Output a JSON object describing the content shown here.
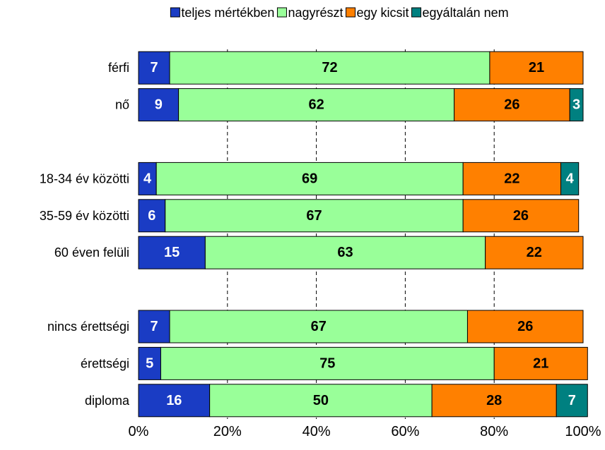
{
  "chart_data": {
    "type": "stacked-bar",
    "orientation": "horizontal",
    "categories": [
      "férfi",
      "nő",
      null,
      "18-34 év közötti",
      "35-59 év közötti",
      "60 éven felüli",
      null,
      "nincs érettségi",
      "érettségi",
      "diploma"
    ],
    "series": [
      {
        "name": "teljes mértékben",
        "color": "#1a3cc4",
        "values": [
          7,
          9,
          null,
          4,
          6,
          15,
          null,
          7,
          5,
          16
        ]
      },
      {
        "name": "nagyrészt",
        "color": "#99ff99",
        "values": [
          72,
          62,
          null,
          69,
          67,
          63,
          null,
          67,
          75,
          50
        ]
      },
      {
        "name": "egy kicsit",
        "color": "#ff8000",
        "values": [
          21,
          26,
          null,
          22,
          26,
          22,
          null,
          26,
          21,
          28
        ]
      },
      {
        "name": "egyáltalán nem",
        "color": "#008080",
        "values": [
          null,
          3,
          null,
          4,
          null,
          null,
          null,
          null,
          null,
          7
        ]
      }
    ],
    "xlim": [
      0,
      100
    ],
    "xticks": [
      {
        "value": 0,
        "label": "0%"
      },
      {
        "value": 20,
        "label": "20%"
      },
      {
        "value": 40,
        "label": "40%"
      },
      {
        "value": 60,
        "label": "60%"
      },
      {
        "value": 80,
        "label": "80%"
      },
      {
        "value": 100,
        "label": "100%"
      }
    ],
    "grid": true,
    "legend": "top"
  }
}
